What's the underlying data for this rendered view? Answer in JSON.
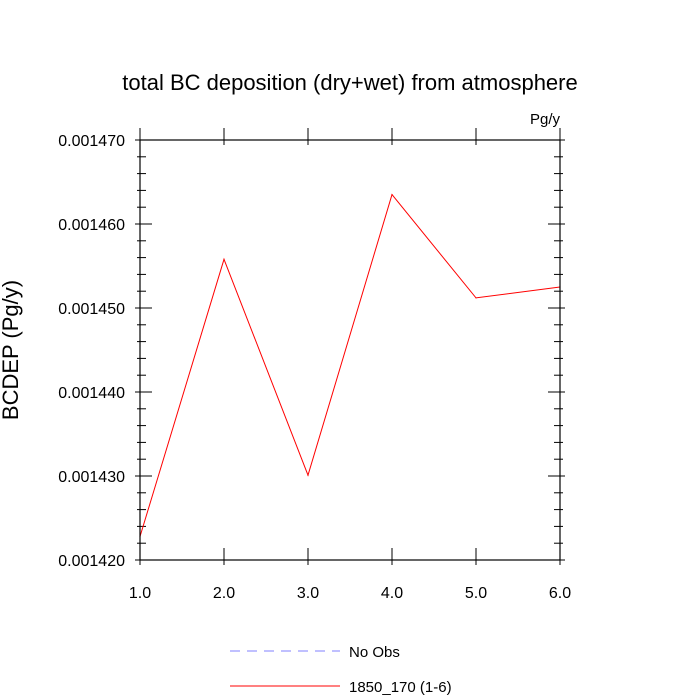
{
  "chart_data": {
    "type": "line",
    "title": "total BC deposition (dry+wet) from atmosphere",
    "units_label": "Pg/y",
    "xlabel": "",
    "ylabel": "BCDEP  (Pg/y)",
    "xlim": [
      1.0,
      6.0
    ],
    "ylim": [
      0.00142,
      0.00147
    ],
    "x_ticks": [
      1.0,
      2.0,
      3.0,
      4.0,
      5.0,
      6.0
    ],
    "x_tick_labels": [
      "1.0",
      "2.0",
      "3.0",
      "4.0",
      "5.0",
      "6.0"
    ],
    "y_ticks": [
      0.00142,
      0.00143,
      0.00144,
      0.00145,
      0.00146,
      0.00147
    ],
    "y_tick_labels": [
      "0.001420",
      "0.001430",
      "0.001440",
      "0.001450",
      "0.001460",
      "0.001470"
    ],
    "grid": false,
    "legend_position": "bottom-center",
    "series": [
      {
        "name": "No Obs",
        "color": "#8080ff",
        "dashed": true,
        "x": [],
        "y": []
      },
      {
        "name": "1850_170 (1-6)",
        "color": "#ff0000",
        "dashed": false,
        "x": [
          1.0,
          2.0,
          3.0,
          4.0,
          5.0,
          6.0
        ],
        "y": [
          0.0014228,
          0.0014558,
          0.0014301,
          0.0014635,
          0.0014512,
          0.0014525
        ]
      }
    ]
  }
}
